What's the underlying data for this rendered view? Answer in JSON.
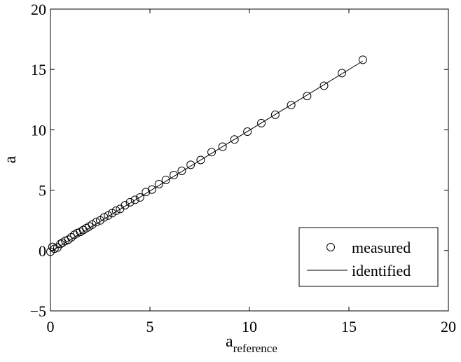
{
  "chart_data": {
    "type": "scatter",
    "title": "",
    "xlabel": "a",
    "xlabel_subscript": "reference",
    "ylabel": "a",
    "xlim": [
      0,
      20
    ],
    "ylim": [
      -5,
      20
    ],
    "xticks": [
      0,
      5,
      10,
      15,
      20
    ],
    "yticks": [
      -5,
      0,
      5,
      10,
      15,
      20
    ],
    "grid": false,
    "legend_position": "bottom-right",
    "series": [
      {
        "name": "measured",
        "style": "circle-markers",
        "color": "#000000",
        "x": [
          0.0,
          0.1,
          0.2,
          0.35,
          0.5,
          0.6,
          0.75,
          0.9,
          1.05,
          1.2,
          1.35,
          1.5,
          1.65,
          1.8,
          1.95,
          2.1,
          2.3,
          2.5,
          2.7,
          2.9,
          3.1,
          3.3,
          3.5,
          3.75,
          4.0,
          4.25,
          4.5,
          4.8,
          5.1,
          5.45,
          5.8,
          6.2,
          6.6,
          7.05,
          7.55,
          8.1,
          8.65,
          9.25,
          9.9,
          10.6,
          11.3,
          12.1,
          12.9,
          13.75,
          14.65,
          15.7
        ],
        "y": [
          -0.1,
          0.3,
          0.15,
          0.25,
          0.55,
          0.65,
          0.8,
          0.9,
          1.1,
          1.3,
          1.45,
          1.55,
          1.7,
          1.85,
          2.0,
          2.15,
          2.35,
          2.5,
          2.75,
          2.9,
          3.1,
          3.3,
          3.45,
          3.75,
          4.0,
          4.2,
          4.4,
          4.85,
          5.05,
          5.5,
          5.85,
          6.25,
          6.6,
          7.1,
          7.5,
          8.15,
          8.6,
          9.2,
          9.85,
          10.55,
          11.25,
          12.05,
          12.8,
          13.65,
          14.7,
          15.8
        ]
      },
      {
        "name": "identified",
        "style": "line",
        "color": "#000000",
        "x": [
          0.0,
          15.7
        ],
        "y": [
          -0.1,
          15.7
        ]
      }
    ]
  }
}
